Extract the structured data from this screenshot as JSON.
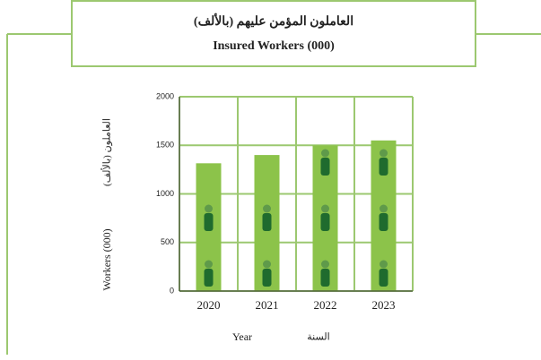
{
  "chart_data": {
    "type": "bar",
    "title_ar": "العاملون المؤمن عليهم (بالألف)",
    "title": "Insured Workers (000)",
    "y_label": "Workers (000)",
    "y_label_ar": "العاملون (بالألف)",
    "x_label": "Year",
    "x_label_ar": "السنة",
    "categories": [
      "2020",
      "2021",
      "2022",
      "2023"
    ],
    "values": [
      1315,
      1400,
      1500,
      1550
    ],
    "color": "#8cc34a",
    "grid_color": "#9cc870",
    "ylim": [
      0,
      2000
    ],
    "yticks": [
      0,
      500,
      1000,
      1500,
      2000
    ],
    "grid": true
  }
}
